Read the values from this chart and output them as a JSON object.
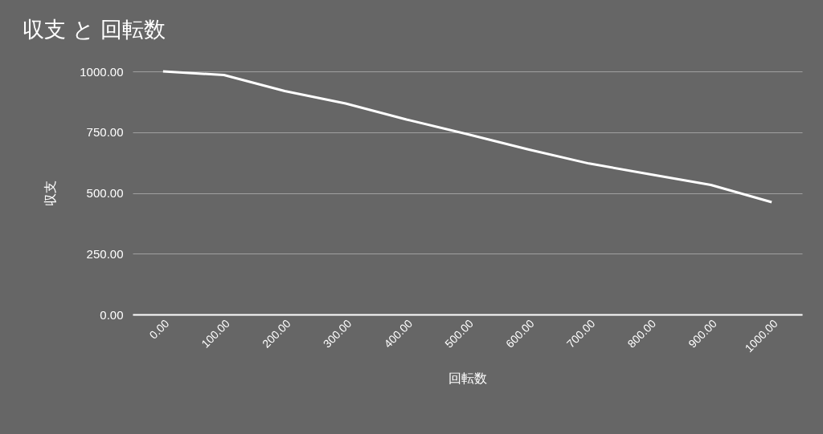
{
  "chart_data": {
    "type": "line",
    "title": "収支 と 回転数",
    "xlabel": "回転数",
    "ylabel": "収支",
    "categories": [
      "0.00",
      "100.00",
      "200.00",
      "300.00",
      "400.00",
      "500.00",
      "600.00",
      "700.00",
      "800.00",
      "900.00",
      "1000.00"
    ],
    "series": [
      {
        "color": "#ffffff",
        "values": [
          1000,
          985,
          919,
          868,
          802,
          742,
          679,
          621,
          577,
          533,
          462
        ]
      }
    ],
    "ylim": [
      0,
      1000
    ],
    "yticks": [
      {
        "value": 0,
        "label": "0.00"
      },
      {
        "value": 250,
        "label": "250.00"
      },
      {
        "value": 500,
        "label": "500.00"
      },
      {
        "value": 750,
        "label": "750.00"
      },
      {
        "value": 1000,
        "label": "1000.00"
      }
    ],
    "grid": "y",
    "legend": false,
    "marker": "none",
    "line_style": "solid"
  }
}
